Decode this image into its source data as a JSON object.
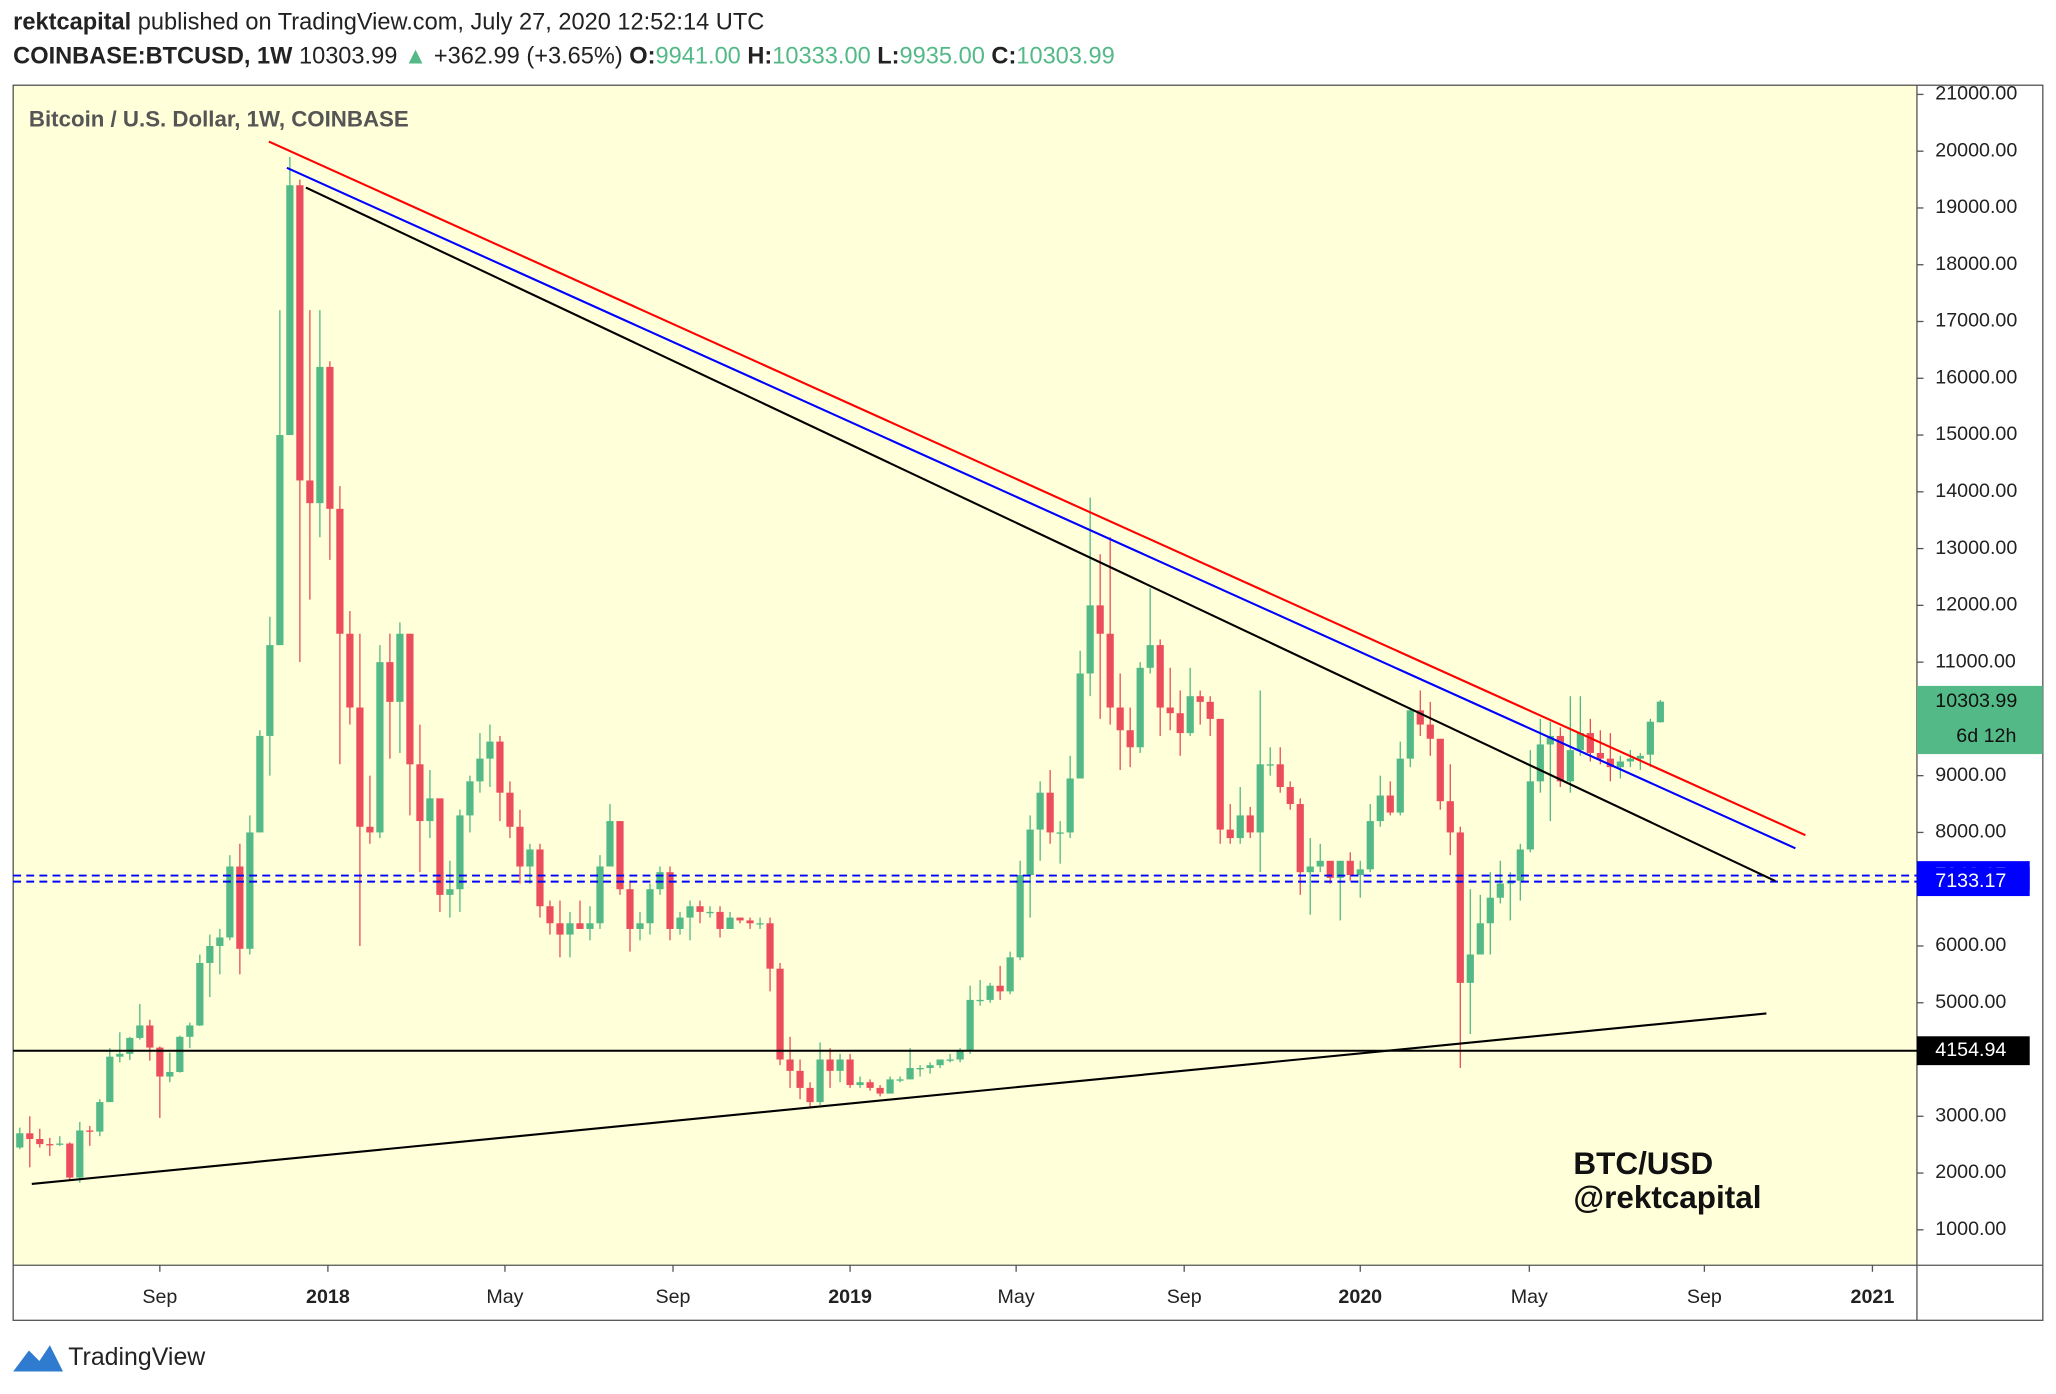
{
  "header": {
    "author": "rektcapital",
    "published": "published on TradingView.com, July 27, 2020 12:52:14 UTC",
    "symbol": "COINBASE:BTCUSD, 1W",
    "last": "10303.99",
    "arrow": "▲",
    "change": "+362.99 (+3.65%)",
    "ohlc": [
      {
        "label": "O:",
        "value": "9941.00"
      },
      {
        "label": "H:",
        "value": "10333.00"
      },
      {
        "label": "L:",
        "value": "9935.00"
      },
      {
        "label": "C:",
        "value": "10303.99"
      }
    ]
  },
  "footer": {
    "brand": "TradingView"
  },
  "chart_data": {
    "type": "candlestick",
    "title": "Bitcoin / U.S. Dollar, 1W, COINBASE",
    "watermark": [
      "BTC/USD",
      "@rektcapital"
    ],
    "up_color": "#53b987",
    "down_color": "#eb4d5c",
    "grid": false,
    "open": [
      2450,
      2700,
      2600,
      2510,
      2500,
      2520,
      1920,
      2750,
      2730,
      3250,
      4050,
      4100,
      4380,
      4600,
      4210,
      3700,
      3780,
      4400,
      4600,
      5700,
      6000,
      6150,
      7400,
      5950,
      8000,
      9700,
      11300,
      15000,
      19400,
      14200,
      13800,
      16200,
      13700,
      11500,
      10200,
      8100,
      8000,
      11000,
      10300,
      11500,
      9200,
      8200,
      8600,
      6900,
      7000,
      8300,
      8900,
      9300,
      9600,
      8700,
      8100,
      7400,
      7700,
      6700,
      6400,
      6200,
      6400,
      6300,
      6400,
      7400,
      8200,
      7000,
      6300,
      6400,
      7000,
      7300,
      6300,
      6500,
      6700,
      6600,
      6600,
      6300,
      6500,
      6450,
      6400,
      6400,
      5600,
      4000,
      3800,
      3500,
      3250,
      4000,
      3800,
      4000,
      3550,
      3600,
      3500,
      3400,
      3650,
      3650,
      3850,
      3850,
      3900,
      4000,
      4000,
      4150,
      5050,
      5050,
      5300,
      5200,
      5800,
      7250,
      8050,
      8700,
      8000,
      8000,
      8950,
      10800,
      12000,
      11500,
      10200,
      9800,
      9500,
      10900,
      11300,
      10200,
      10100,
      9750,
      10400,
      10300,
      10000,
      8050,
      7900,
      8300,
      8000,
      9200,
      9200,
      8800,
      8500,
      7300,
      7400,
      7500,
      7200,
      7500,
      7250,
      7350,
      8200,
      8650,
      8350,
      9300,
      10150,
      9900,
      9650,
      8550,
      8000,
      5350,
      5850,
      6400,
      6850,
      7100,
      7150,
      7700,
      8900,
      9550,
      9700,
      8900,
      9450,
      9750,
      9400,
      9300,
      9150,
      9250,
      9300,
      9370,
      9941
    ],
    "high": [
      2800,
      3000,
      2780,
      2620,
      2650,
      2540,
      2900,
      2830,
      3300,
      4200,
      4480,
      4400,
      4980,
      4700,
      4230,
      4120,
      4420,
      4650,
      5850,
      6200,
      6300,
      7600,
      7800,
      8300,
      9800,
      11800,
      17200,
      19900,
      19500,
      17200,
      17200,
      16300,
      14100,
      11900,
      11500,
      9000,
      11300,
      11500,
      11700,
      11500,
      9900,
      9100,
      8600,
      7500,
      8400,
      9000,
      9750,
      9900,
      9700,
      8900,
      8400,
      7800,
      7800,
      6800,
      6800,
      6600,
      6800,
      6700,
      7600,
      8500,
      8200,
      7150,
      6600,
      7100,
      7400,
      7400,
      6600,
      6800,
      6800,
      6700,
      6700,
      6600,
      6500,
      6500,
      6500,
      6500,
      5700,
      4400,
      4000,
      3600,
      4300,
      4200,
      4100,
      4100,
      3700,
      3650,
      3550,
      3700,
      3700,
      4200,
      3900,
      3950,
      4000,
      4100,
      4200,
      5300,
      5400,
      5350,
      5650,
      5900,
      7500,
      8300,
      8900,
      9100,
      8200,
      9350,
      11200,
      13900,
      12900,
      13200,
      10800,
      10200,
      11000,
      12300,
      11400,
      10900,
      10500,
      10900,
      10500,
      10400,
      10000,
      8500,
      8800,
      8450,
      10500,
      9500,
      9500,
      8900,
      8600,
      7900,
      7800,
      7500,
      7500,
      7650,
      7500,
      8500,
      9000,
      8900,
      9600,
      10200,
      10500,
      10300,
      9650,
      9200,
      8100,
      7000,
      6900,
      7300,
      7500,
      7300,
      7800,
      9450,
      10000,
      9950,
      9850,
      10400,
      10400,
      10000,
      9800,
      9750,
      9350,
      9450,
      9400,
      10000,
      10333
    ],
    "low": [
      2420,
      2100,
      2450,
      2300,
      2480,
      1880,
      1830,
      2480,
      2650,
      3250,
      3950,
      3990,
      4350,
      3980,
      2970,
      3600,
      3770,
      4200,
      4590,
      5100,
      5500,
      6100,
      5500,
      5850,
      8000,
      9000,
      11300,
      15000,
      11000,
      12100,
      13200,
      12800,
      9200,
      9900,
      6000,
      7800,
      7900,
      9300,
      9400,
      8300,
      7300,
      7900,
      6600,
      6500,
      6600,
      8000,
      8700,
      8800,
      8200,
      7900,
      7100,
      7100,
      6500,
      6200,
      5800,
      5800,
      6300,
      6100,
      6300,
      7400,
      6900,
      5900,
      6100,
      6200,
      6900,
      6100,
      6200,
      6100,
      6400,
      6500,
      6150,
      6300,
      6400,
      6300,
      6300,
      5200,
      3900,
      3500,
      3300,
      3150,
      3200,
      3500,
      3600,
      3500,
      3500,
      3450,
      3350,
      3400,
      3600,
      3650,
      3700,
      3750,
      3850,
      3950,
      3950,
      4100,
      4950,
      5000,
      5050,
      5150,
      5750,
      6500,
      7500,
      7800,
      7450,
      7900,
      8950,
      10400,
      10000,
      9900,
      9100,
      9150,
      9400,
      10800,
      9700,
      9800,
      9350,
      9700,
      9900,
      9700,
      7800,
      7800,
      7800,
      7900,
      7300,
      9000,
      8700,
      8400,
      6900,
      6550,
      7300,
      7100,
      6450,
      7150,
      6850,
      7300,
      8100,
      8300,
      8300,
      9150,
      9700,
      9350,
      8400,
      7600,
      3850,
      4450,
      5850,
      5850,
      6750,
      6450,
      6800,
      7650,
      8700,
      8200,
      8800,
      8700,
      9350,
      9250,
      9200,
      8900,
      8950,
      9150,
      9100,
      9150,
      9935
    ],
    "close": [
      2700,
      2600,
      2510,
      2500,
      2520,
      1920,
      2750,
      2730,
      3250,
      4050,
      4100,
      4380,
      4600,
      4210,
      3700,
      3780,
      4400,
      4600,
      5700,
      6000,
      6150,
      7400,
      5950,
      8000,
      9700,
      11300,
      15000,
      19400,
      14200,
      13800,
      16200,
      13700,
      11500,
      10200,
      8100,
      8000,
      11000,
      10300,
      11500,
      9200,
      8200,
      8600,
      6900,
      7000,
      8300,
      8900,
      9300,
      9600,
      8700,
      8100,
      7400,
      7700,
      6700,
      6400,
      6200,
      6400,
      6300,
      6400,
      7400,
      8200,
      7000,
      6300,
      6400,
      7000,
      7300,
      6300,
      6500,
      6700,
      6600,
      6600,
      6300,
      6500,
      6450,
      6400,
      6400,
      5600,
      4000,
      3800,
      3500,
      3250,
      4000,
      3800,
      4000,
      3550,
      3600,
      3500,
      3400,
      3650,
      3650,
      3850,
      3850,
      3900,
      4000,
      4000,
      4150,
      5050,
      5050,
      5300,
      5200,
      5800,
      7250,
      8050,
      8700,
      8000,
      8000,
      8950,
      10800,
      12000,
      11500,
      10200,
      9800,
      9500,
      10900,
      11300,
      10200,
      10100,
      9750,
      10400,
      10300,
      10000,
      8050,
      7900,
      8300,
      8000,
      9200,
      9200,
      8800,
      8500,
      7300,
      7400,
      7500,
      7200,
      7500,
      7250,
      7350,
      8200,
      8650,
      8350,
      9300,
      10150,
      9900,
      9650,
      8550,
      8000,
      5350,
      5850,
      6400,
      6850,
      7100,
      7150,
      7700,
      8900,
      9550,
      9700,
      8900,
      9450,
      9750,
      9400,
      9300,
      9150,
      9250,
      9300,
      9350,
      9950,
      10303.99
    ],
    "xlim": [
      -0.66,
      189.65
    ],
    "xticks": [
      {
        "value": 14,
        "label": "Sep"
      },
      {
        "value": 30.8,
        "label": "2018"
      },
      {
        "value": 48.5,
        "label": "May"
      },
      {
        "value": 65.3,
        "label": "Sep"
      },
      {
        "value": 83,
        "label": "2019"
      },
      {
        "value": 99.6,
        "label": "May"
      },
      {
        "value": 116.4,
        "label": "Sep"
      },
      {
        "value": 134,
        "label": "2020"
      },
      {
        "value": 150.9,
        "label": "May"
      },
      {
        "value": 168.4,
        "label": "Sep"
      },
      {
        "value": 185.2,
        "label": "2021"
      }
    ],
    "ylim": [
      376,
      21162
    ],
    "yticks": [
      {
        "value": 1000,
        "label": "1000.00"
      },
      {
        "value": 2000,
        "label": "2000.00"
      },
      {
        "value": 3000,
        "label": "3000.00"
      },
      {
        "value": 4000,
        "label": "4000.00"
      },
      {
        "value": 5000,
        "label": "5000.00"
      },
      {
        "value": 6000,
        "label": "6000.00"
      },
      {
        "value": 7000,
        "label": "7000.00"
      },
      {
        "value": 8000,
        "label": "8000.00"
      },
      {
        "value": 9000,
        "label": "9000.00"
      },
      {
        "value": 10000,
        "label": "10000.00"
      },
      {
        "value": 11000,
        "label": "11000.00"
      },
      {
        "value": 12000,
        "label": "12000.00"
      },
      {
        "value": 13000,
        "label": "13000.00"
      },
      {
        "value": 14000,
        "label": "14000.00"
      },
      {
        "value": 15000,
        "label": "15000.00"
      },
      {
        "value": 16000,
        "label": "16000.00"
      },
      {
        "value": 17000,
        "label": "17000.00"
      },
      {
        "value": 18000,
        "label": "18000.00"
      },
      {
        "value": 19000,
        "label": "19000.00"
      },
      {
        "value": 20000,
        "label": "20000.00"
      },
      {
        "value": 21000,
        "label": "21000.00"
      }
    ],
    "trendlines": [
      {
        "color": "#ff0000",
        "points": [
          [
            24.9,
            20169
          ],
          [
            178.5,
            7952
          ]
        ]
      },
      {
        "color": "#0000ff",
        "points": [
          [
            26.7,
            19707
          ],
          [
            177.5,
            7721
          ]
        ]
      },
      {
        "color": "#000000",
        "points": [
          [
            28.6,
            19360
          ],
          [
            175.5,
            7143
          ]
        ]
      },
      {
        "color": "#000000",
        "points": [
          [
            1.2,
            1808
          ],
          [
            174.6,
            4811
          ]
        ]
      }
    ],
    "levels": [
      {
        "value": 7240.17,
        "color": "#0000ff",
        "style": "dashed"
      },
      {
        "value": 7133.17,
        "color": "#0000ff",
        "style": "dashed"
      },
      {
        "value": 4154.94,
        "color": "#000000",
        "style": "solid"
      }
    ],
    "last_price": {
      "value": 10303.99,
      "countdown": "6d 12h",
      "color": "#53b987"
    }
  }
}
